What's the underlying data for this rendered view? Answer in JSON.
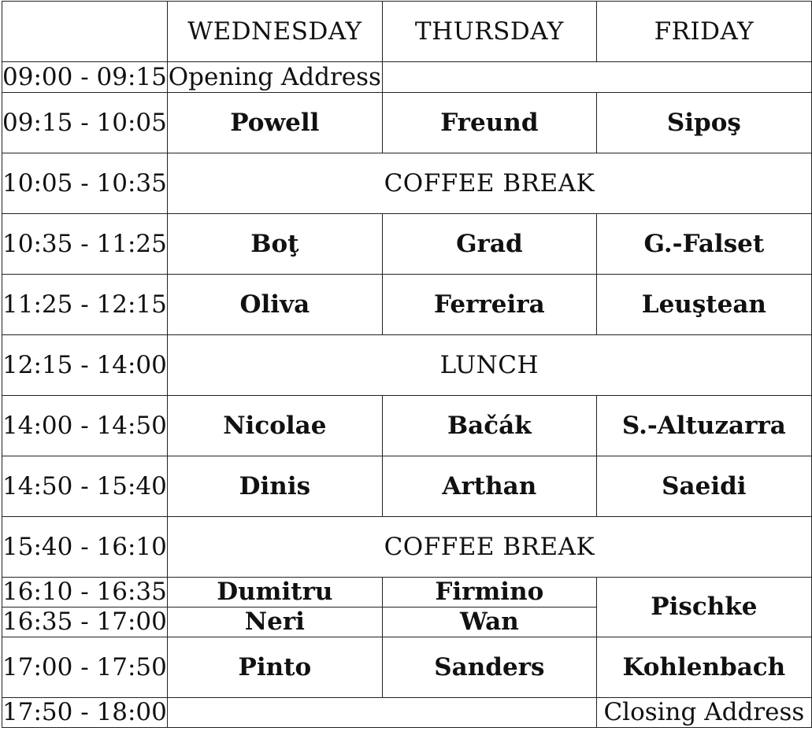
{
  "days": [
    "WEDNESDAY",
    "THURSDAY",
    "FRIDAY"
  ],
  "rows": {
    "opening": {
      "time": "09:00 - 09:15",
      "label": "Opening Address"
    },
    "s1": {
      "time": "09:15 - 10:05",
      "wed": "Powell",
      "thu": "Freund",
      "fri": "Sipoş"
    },
    "coffee1": {
      "time": "10:05 - 10:35",
      "label": "COFFEE BREAK"
    },
    "s2": {
      "time": "10:35 - 11:25",
      "wed": "Boţ",
      "thu": "Grad",
      "fri": "G.-Falset"
    },
    "s3": {
      "time": "11:25 - 12:15",
      "wed": "Oliva",
      "thu": "Ferreira",
      "fri": "Leuştean"
    },
    "lunch": {
      "time": "12:15 - 14:00",
      "label": "LUNCH"
    },
    "s4": {
      "time": "14:00 - 14:50",
      "wed": "Nicolae",
      "thu": "Bačák",
      "fri": "S.-Altuzarra"
    },
    "s5": {
      "time": "14:50 - 15:40",
      "wed": "Dinis",
      "thu": "Arthan",
      "fri": "Saeidi"
    },
    "coffee2": {
      "time": "15:40 - 16:10",
      "label": "COFFEE BREAK"
    },
    "s6a": {
      "time": "16:10 - 16:35",
      "wed": "Dumitru",
      "thu": "Firmino",
      "fri": "Pischke"
    },
    "s6b": {
      "time": "16:35 - 17:00",
      "wed": "Neri",
      "thu": "Wan"
    },
    "s7": {
      "time": "17:00 - 17:50",
      "wed": "Pinto",
      "thu": "Sanders",
      "fri": "Kohlenbach"
    },
    "closing": {
      "time": "17:50 - 18:00",
      "label": "Closing Address"
    }
  }
}
